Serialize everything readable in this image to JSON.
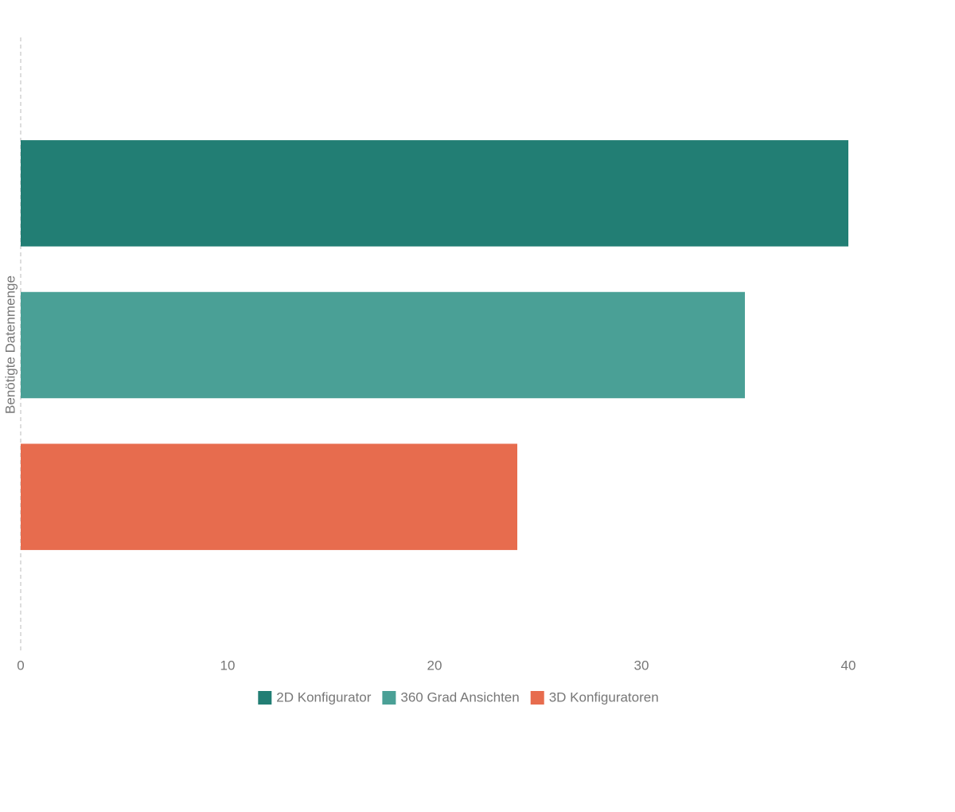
{
  "chart_data": {
    "type": "bar",
    "orientation": "horizontal",
    "y_label": "Benötigte Datenmenge",
    "categories": [
      null
    ],
    "series": [
      {
        "name": "2D Konfigurator",
        "color": "#227e74",
        "values": [
          40
        ]
      },
      {
        "name": "360 Grad Ansichten",
        "color": "#4aa096",
        "values": [
          35
        ]
      },
      {
        "name": "3D Konfiguratoren",
        "color": "#e76c4e",
        "values": [
          24
        ]
      }
    ],
    "xlim": [
      0,
      40
    ],
    "xticks": [
      0,
      10,
      20,
      30,
      40
    ],
    "grid": false,
    "legend": "bottom"
  }
}
